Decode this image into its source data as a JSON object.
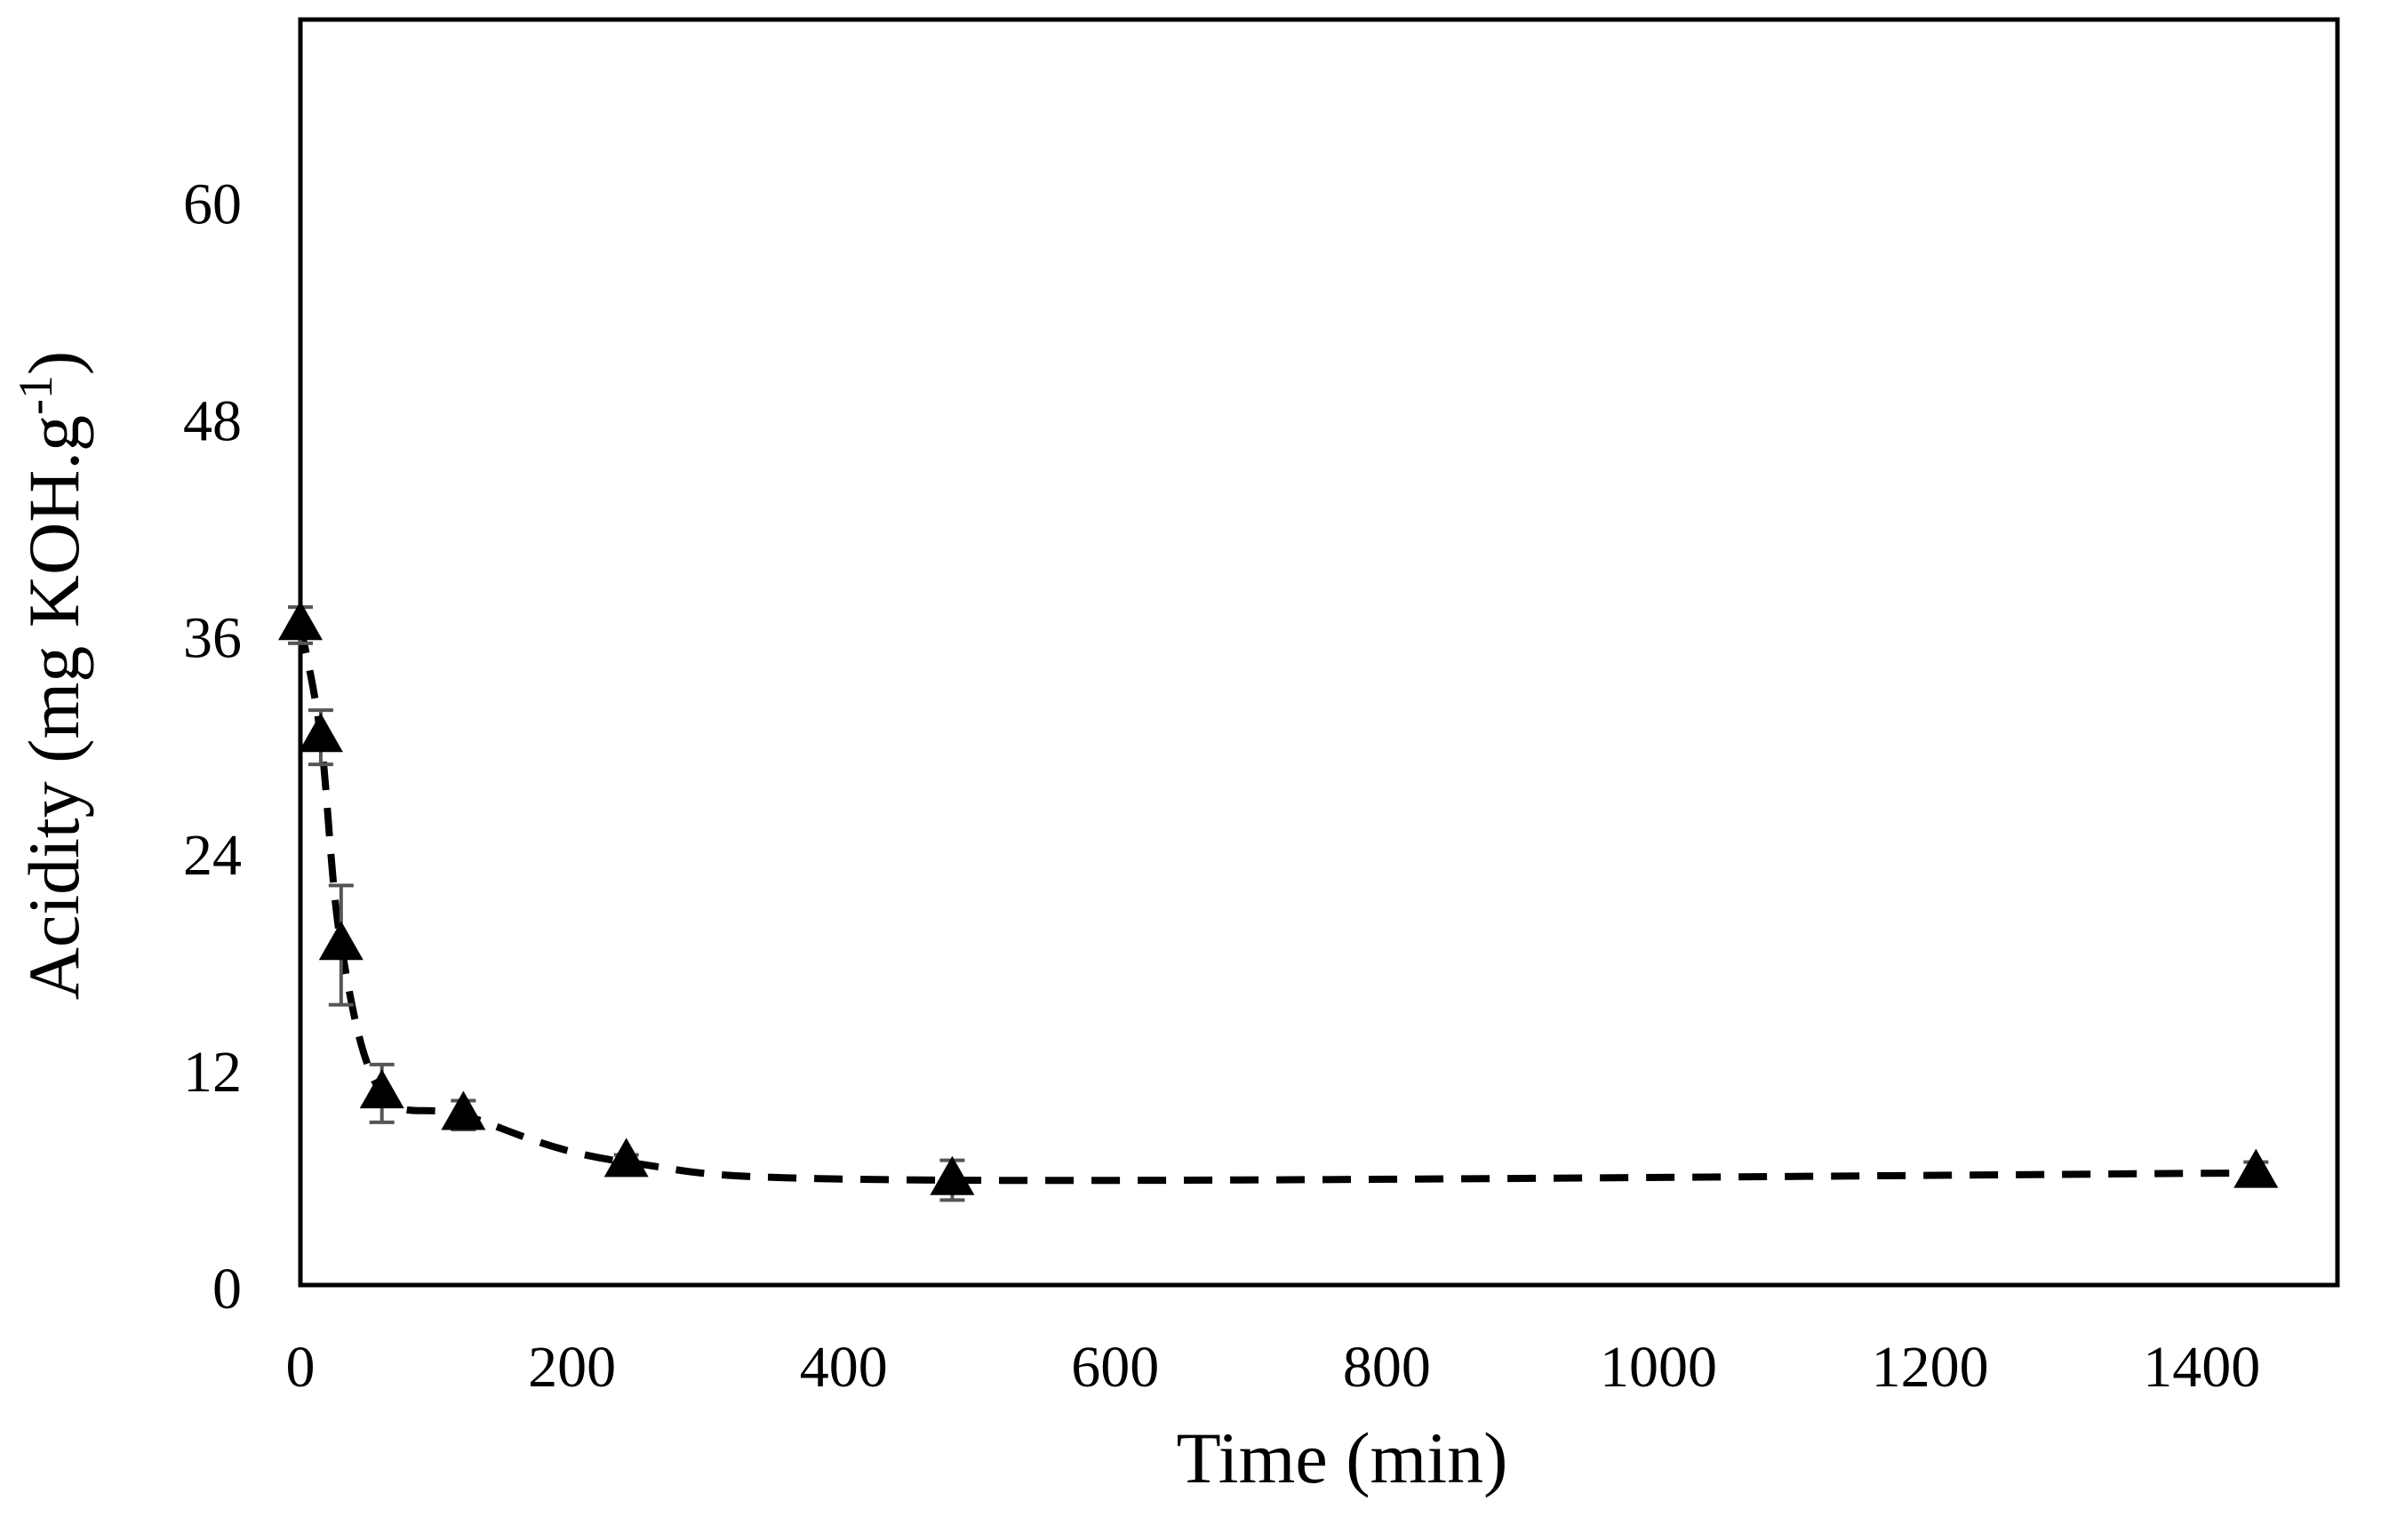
{
  "chart_data": {
    "type": "scatter",
    "title": "",
    "xlabel": "Time (min)",
    "ylabel_main": "Acidity (mg KOH.g",
    "ylabel_sup": "-1",
    "ylabel_close": ")",
    "xlim": [
      0,
      1500
    ],
    "ylim": [
      0,
      70
    ],
    "xticks": [
      0,
      200,
      400,
      600,
      800,
      1000,
      1200,
      1400
    ],
    "xtick_labels": [
      "0",
      "200",
      "400",
      "600",
      "800",
      "1000",
      "1200",
      "1400"
    ],
    "yticks": [
      0,
      12,
      24,
      36,
      48,
      60
    ],
    "ytick_labels": [
      "0",
      "12",
      "24",
      "36",
      "48",
      "60"
    ],
    "grid": false,
    "legend": "none",
    "series": [
      {
        "name": "Acidity",
        "marker": "triangle",
        "line_style": "dashed-smooth",
        "points": [
          {
            "x": 0,
            "y": 36.5,
            "err": 1.0
          },
          {
            "x": 15,
            "y": 30.3,
            "err": 1.5
          },
          {
            "x": 30,
            "y": 18.8,
            "err": 3.3
          },
          {
            "x": 60,
            "y": 10.6,
            "err": 1.6
          },
          {
            "x": 120,
            "y": 9.4,
            "err": 0.8
          },
          {
            "x": 240,
            "y": 6.8,
            "err": 0.4
          },
          {
            "x": 480,
            "y": 5.8,
            "err": 1.1
          },
          {
            "x": 1440,
            "y": 6.2,
            "err": 0.6
          }
        ]
      }
    ],
    "colors": {
      "marker": "#000000",
      "line": "#000000",
      "errorbar": "#555555",
      "frame": "#000000"
    }
  }
}
